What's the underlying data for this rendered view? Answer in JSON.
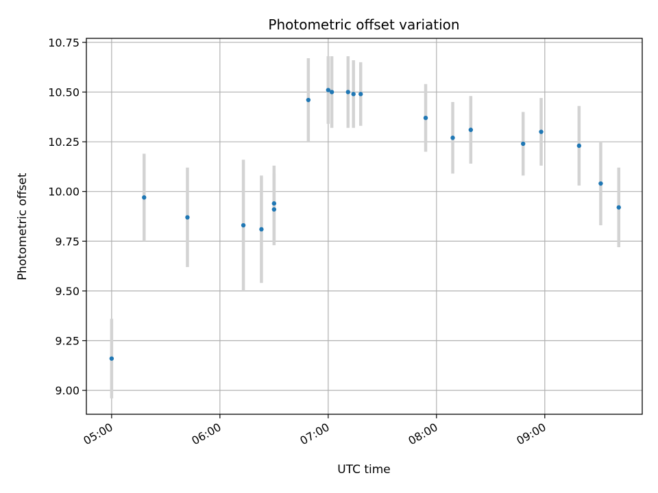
{
  "chart_data": {
    "type": "scatter",
    "title": "Photometric offset variation",
    "xlabel": "UTC time",
    "ylabel": "Photometric offset",
    "x_tick_labels": [
      "05:00",
      "06:00",
      "07:00",
      "08:00",
      "09:00"
    ],
    "x_tick_values": [
      "05:00",
      "06:00",
      "07:00",
      "08:00",
      "09:00"
    ],
    "y_tick_labels": [
      "9.00",
      "9.25",
      "9.50",
      "9.75",
      "10.00",
      "10.25",
      "10.50",
      "10.75"
    ],
    "xlim": [
      "04:46",
      "09:54"
    ],
    "ylim": [
      8.88,
      10.77
    ],
    "grid": true,
    "colors": {
      "point": "#1f77b4",
      "errorbar": "#d3d3d3",
      "grid": "#b0b0b0",
      "axis": "#000000"
    },
    "series": [
      {
        "points": [
          {
            "x": "05:00",
            "y": 9.16,
            "yerr": 0.2
          },
          {
            "x": "05:18",
            "y": 9.97,
            "yerr": 0.22
          },
          {
            "x": "05:42",
            "y": 9.87,
            "yerr": 0.25
          },
          {
            "x": "06:13",
            "y": 9.83,
            "yerr": 0.33
          },
          {
            "x": "06:23",
            "y": 9.81,
            "yerr": 0.27
          },
          {
            "x": "06:30",
            "y": 9.94,
            "yerr": 0.19
          },
          {
            "x": "06:30",
            "y": 9.91,
            "yerr": 0.18
          },
          {
            "x": "06:49",
            "y": 10.46,
            "yerr": 0.21
          },
          {
            "x": "07:00",
            "y": 10.51,
            "yerr": 0.17
          },
          {
            "x": "07:02",
            "y": 10.5,
            "yerr": 0.18
          },
          {
            "x": "07:11",
            "y": 10.5,
            "yerr": 0.18
          },
          {
            "x": "07:14",
            "y": 10.49,
            "yerr": 0.17
          },
          {
            "x": "07:18",
            "y": 10.49,
            "yerr": 0.16
          },
          {
            "x": "07:54",
            "y": 10.37,
            "yerr": 0.17
          },
          {
            "x": "08:09",
            "y": 10.27,
            "yerr": 0.18
          },
          {
            "x": "08:19",
            "y": 10.31,
            "yerr": 0.17
          },
          {
            "x": "08:48",
            "y": 10.24,
            "yerr": 0.16
          },
          {
            "x": "08:58",
            "y": 10.3,
            "yerr": 0.17
          },
          {
            "x": "09:19",
            "y": 10.23,
            "yerr": 0.2
          },
          {
            "x": "09:31",
            "y": 10.04,
            "yerr": 0.21
          },
          {
            "x": "09:41",
            "y": 9.92,
            "yerr": 0.2
          }
        ]
      }
    ]
  }
}
